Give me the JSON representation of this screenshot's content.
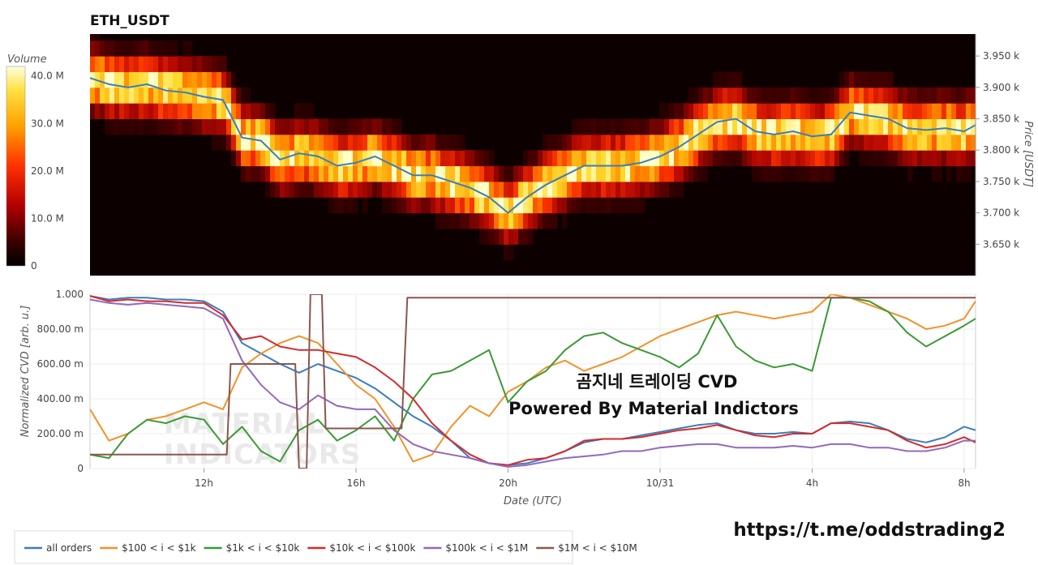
{
  "chart_data": [
    {
      "type": "heatmap",
      "title": "ETH_USDT",
      "ylabel": "Price [USDT]",
      "ylim": [
        3600,
        3985
      ],
      "yticks": [
        "3.650 k",
        "3.700 k",
        "3.750 k",
        "3.800 k",
        "3.850 k",
        "3.900 k",
        "3.950 k"
      ],
      "ytick_values": [
        3650,
        3700,
        3750,
        3800,
        3850,
        3900,
        3950
      ],
      "colorbar": {
        "label": "Volume",
        "range": [
          0,
          42
        ],
        "ticks": [
          "0",
          "10.0 M",
          "20.0 M",
          "30.0 M",
          "40.0 M"
        ],
        "tick_values": [
          0,
          10,
          20,
          30,
          40
        ]
      },
      "price_bins": [
        3600,
        3625,
        3650,
        3675,
        3700,
        3725,
        3750,
        3775,
        3800,
        3825,
        3850,
        3875,
        3900,
        3925,
        3950,
        3975
      ],
      "price_line": {
        "color": "#3b7dbf",
        "x": [
          9.0,
          9.5,
          10.0,
          10.5,
          11.0,
          11.5,
          12.0,
          12.5,
          13.0,
          13.5,
          14.0,
          14.5,
          15.0,
          15.5,
          16.0,
          16.5,
          17.0,
          17.5,
          18.0,
          18.5,
          19.0,
          19.5,
          20.0,
          20.5,
          21.0,
          21.5,
          22.0,
          22.5,
          23.0,
          23.5,
          24.0,
          24.5,
          25.0,
          25.5,
          26.0,
          26.5,
          27.0,
          27.5,
          28.0,
          28.5,
          29.0,
          29.5,
          30.0,
          30.5,
          31.0,
          31.5,
          32.0,
          32.3
        ],
        "y": [
          3915,
          3905,
          3900,
          3905,
          3895,
          3892,
          3885,
          3880,
          3820,
          3815,
          3785,
          3795,
          3790,
          3775,
          3780,
          3790,
          3775,
          3760,
          3760,
          3750,
          3740,
          3725,
          3700,
          3725,
          3745,
          3760,
          3775,
          3775,
          3775,
          3780,
          3790,
          3805,
          3825,
          3845,
          3850,
          3830,
          3825,
          3830,
          3822,
          3825,
          3860,
          3855,
          3850,
          3835,
          3832,
          3835,
          3830,
          3840
        ]
      }
    },
    {
      "type": "line",
      "xlabel": "Date (UTC)",
      "ylabel": "Normalized CVD [arb. u.]",
      "ylim": [
        0,
        1.0
      ],
      "xlim": [
        9.0,
        32.3
      ],
      "xticks": [
        "12h",
        "16h",
        "20h",
        "10/31",
        "4h",
        "8h"
      ],
      "xtick_values": [
        12,
        16,
        20,
        24,
        28,
        32
      ],
      "yticks": [
        "0",
        "200.00 m",
        "400.00 m",
        "600.00 m",
        "800.00 m",
        "1.000"
      ],
      "ytick_values": [
        0,
        0.2,
        0.4,
        0.6,
        0.8,
        1.0
      ],
      "series": [
        {
          "name": "all orders",
          "color": "#3b7dbf",
          "x": [
            9.0,
            9.5,
            10,
            10.5,
            11,
            11.5,
            12,
            12.5,
            13,
            13.5,
            14,
            14.5,
            15,
            15.5,
            16,
            16.5,
            17,
            17.5,
            18,
            18.5,
            19,
            19.5,
            20,
            20.5,
            21,
            21.5,
            22,
            22.5,
            23,
            23.5,
            24,
            24.5,
            25,
            25.5,
            26,
            26.5,
            27,
            27.5,
            28,
            28.5,
            29,
            29.5,
            30,
            30.5,
            31,
            31.5,
            32,
            32.3
          ],
          "y": [
            0.99,
            0.97,
            0.98,
            0.98,
            0.97,
            0.97,
            0.96,
            0.9,
            0.72,
            0.66,
            0.6,
            0.55,
            0.6,
            0.56,
            0.52,
            0.46,
            0.38,
            0.3,
            0.24,
            0.16,
            0.06,
            0.03,
            0.02,
            0.03,
            0.06,
            0.1,
            0.15,
            0.17,
            0.17,
            0.19,
            0.21,
            0.23,
            0.25,
            0.26,
            0.22,
            0.2,
            0.2,
            0.21,
            0.2,
            0.26,
            0.27,
            0.26,
            0.22,
            0.17,
            0.15,
            0.18,
            0.24,
            0.22
          ]
        },
        {
          "name": "$100 < i < $1k",
          "color": "#f2922b",
          "x": [
            9.0,
            9.5,
            10,
            10.5,
            11,
            11.5,
            12,
            12.5,
            13,
            13.5,
            14,
            14.5,
            15,
            15.5,
            16,
            16.5,
            17,
            17.5,
            18,
            18.5,
            19,
            19.5,
            20,
            20.5,
            21,
            21.5,
            22,
            22.5,
            23,
            23.5,
            24,
            24.5,
            25,
            25.5,
            26,
            26.5,
            27,
            27.5,
            28,
            28.5,
            29,
            29.5,
            30,
            30.5,
            31,
            31.5,
            32,
            32.3
          ],
          "y": [
            0.34,
            0.16,
            0.2,
            0.28,
            0.3,
            0.34,
            0.38,
            0.34,
            0.58,
            0.66,
            0.72,
            0.76,
            0.72,
            0.6,
            0.48,
            0.4,
            0.24,
            0.04,
            0.08,
            0.24,
            0.36,
            0.3,
            0.44,
            0.5,
            0.58,
            0.62,
            0.56,
            0.6,
            0.64,
            0.7,
            0.76,
            0.8,
            0.84,
            0.88,
            0.9,
            0.88,
            0.86,
            0.88,
            0.9,
            1.0,
            0.98,
            0.94,
            0.9,
            0.86,
            0.8,
            0.82,
            0.86,
            0.96
          ]
        },
        {
          "name": "$1k < i < $10k",
          "color": "#3a9a35",
          "x": [
            9.0,
            9.5,
            10,
            10.5,
            11,
            11.5,
            12,
            12.5,
            13,
            13.5,
            14,
            14.5,
            15,
            15.5,
            16,
            16.5,
            17,
            17.5,
            18,
            18.5,
            19,
            19.5,
            20,
            20.5,
            21,
            21.5,
            22,
            22.5,
            23,
            23.5,
            24,
            24.5,
            25,
            25.5,
            26,
            26.5,
            27,
            27.5,
            28,
            28.5,
            29,
            29.5,
            30,
            30.5,
            31,
            31.5,
            32,
            32.3
          ],
          "y": [
            0.08,
            0.06,
            0.2,
            0.28,
            0.26,
            0.3,
            0.28,
            0.14,
            0.24,
            0.1,
            0.04,
            0.22,
            0.28,
            0.16,
            0.22,
            0.3,
            0.16,
            0.4,
            0.54,
            0.56,
            0.62,
            0.68,
            0.38,
            0.5,
            0.56,
            0.68,
            0.76,
            0.78,
            0.72,
            0.68,
            0.64,
            0.58,
            0.66,
            0.88,
            0.7,
            0.62,
            0.58,
            0.6,
            0.56,
            0.98,
            0.98,
            0.96,
            0.9,
            0.78,
            0.7,
            0.76,
            0.82,
            0.86
          ]
        },
        {
          "name": "$10k < i < $100k",
          "color": "#d42b2b",
          "x": [
            9.0,
            9.5,
            10,
            10.5,
            11,
            11.5,
            12,
            12.5,
            13,
            13.5,
            14,
            14.5,
            15,
            15.5,
            16,
            16.5,
            17,
            17.5,
            18,
            18.5,
            19,
            19.5,
            20,
            20.5,
            21,
            21.5,
            22,
            22.5,
            23,
            23.5,
            24,
            24.5,
            25,
            25.5,
            26,
            26.5,
            27,
            27.5,
            28,
            28.5,
            29,
            29.5,
            30,
            30.5,
            31,
            31.5,
            32,
            32.3
          ],
          "y": [
            0.99,
            0.96,
            0.97,
            0.96,
            0.96,
            0.95,
            0.95,
            0.88,
            0.74,
            0.76,
            0.7,
            0.68,
            0.68,
            0.66,
            0.64,
            0.58,
            0.5,
            0.4,
            0.26,
            0.16,
            0.08,
            0.03,
            0.02,
            0.05,
            0.06,
            0.1,
            0.16,
            0.17,
            0.17,
            0.18,
            0.2,
            0.22,
            0.23,
            0.25,
            0.22,
            0.19,
            0.18,
            0.2,
            0.2,
            0.26,
            0.26,
            0.24,
            0.22,
            0.16,
            0.12,
            0.14,
            0.18,
            0.15
          ]
        },
        {
          "name": "$100k < i < $1M",
          "color": "#9467bd",
          "x": [
            9.0,
            9.5,
            10,
            10.5,
            11,
            11.5,
            12,
            12.5,
            13,
            13.5,
            14,
            14.5,
            15,
            15.5,
            16,
            16.5,
            17,
            17.5,
            18,
            18.5,
            19,
            19.5,
            20,
            20.5,
            21,
            21.5,
            22,
            22.5,
            23,
            23.5,
            24,
            24.5,
            25,
            25.5,
            26,
            26.5,
            27,
            27.5,
            28,
            28.5,
            29,
            29.5,
            30,
            30.5,
            31,
            31.5,
            32,
            32.3
          ],
          "y": [
            0.97,
            0.95,
            0.94,
            0.95,
            0.94,
            0.93,
            0.92,
            0.86,
            0.62,
            0.48,
            0.38,
            0.34,
            0.42,
            0.36,
            0.34,
            0.34,
            0.22,
            0.14,
            0.1,
            0.08,
            0.06,
            0.03,
            0.01,
            0.02,
            0.04,
            0.06,
            0.07,
            0.08,
            0.1,
            0.1,
            0.12,
            0.13,
            0.14,
            0.14,
            0.12,
            0.12,
            0.12,
            0.13,
            0.12,
            0.14,
            0.14,
            0.12,
            0.12,
            0.1,
            0.1,
            0.12,
            0.16,
            0.16
          ]
        },
        {
          "name": "$1M < i < $10M",
          "color": "#8c564b",
          "step": true,
          "x": [
            9.0,
            12.6,
            12.7,
            13.7,
            14.4,
            14.5,
            14.7,
            14.8,
            15.1,
            15.2,
            16.0,
            17.2,
            17.35,
            32.3
          ],
          "y": [
            0.08,
            0.08,
            0.6,
            0.6,
            0.6,
            0.0,
            0.0,
            1.0,
            1.0,
            0.23,
            0.23,
            0.23,
            0.98,
            0.98
          ]
        }
      ],
      "legend_position": "bottom-left"
    }
  ],
  "overlay": {
    "line1": "곰지네 트레이딩 CVD",
    "line2": "Powered By Material Indictors"
  },
  "watermark": {
    "line1": "MATERIAL",
    "line2": "INDICATORS"
  },
  "link": "https://t.me/oddstrading2"
}
